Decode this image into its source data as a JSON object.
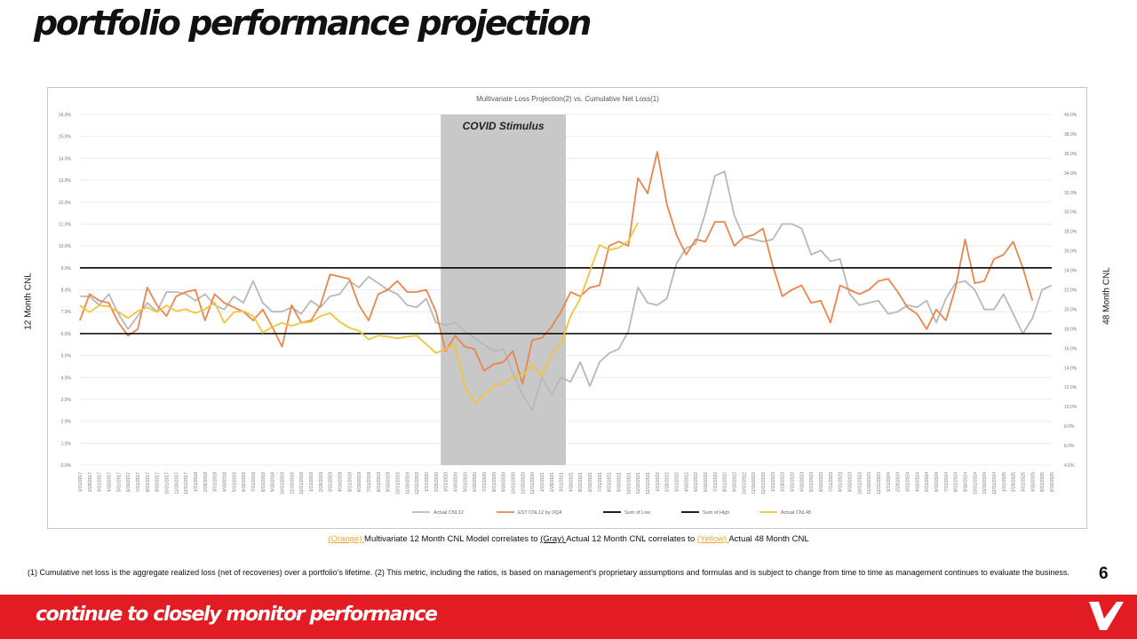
{
  "page": {
    "title": "portfolio performance projection",
    "left_axis_label": "12 Month CNL",
    "right_axis_label": "48 Month CNL",
    "page_number": "6",
    "footer_tagline": "continue to closely monitor performance",
    "footnote": "(1) Cumulative net loss is the aggregate realized loss (net of recoveries) over a portfolio's lifetime. (2) This metric, including the ratios, is based on management's proprietary assumptions and formulas and is subject to change from time to time as management continues to evaluate the business.",
    "logo_name": "V-logo"
  },
  "legend_note": {
    "orange": "(Orange) ",
    "part1": "Multivariate 12 Month CNL Model correlates to ",
    "gray": "(Gray) ",
    "part2": "Actual 12 Month CNL correlates to ",
    "yellow": "(Yellow) ",
    "part3": "Actual 48 Month CNL"
  },
  "colors": {
    "accent": "#e31b23",
    "gray_series": "#b8b8b8",
    "orange_series": "#e8864c",
    "yellow_series": "#f2c43d",
    "bounds": "#000000",
    "covid_band": "#c8c8c8"
  },
  "chart_data": {
    "type": "line",
    "title": "Multivariate Loss Projection(2) vs. Cumulative Net Loss(1)",
    "annotation": "COVID Stimulus",
    "covid_period": [
      "3/31/2020",
      "3/31/2021"
    ],
    "ylim_left": [
      0,
      16
    ],
    "ylim_right": [
      4,
      40
    ],
    "y_ticks_left": [
      "0.0%",
      "1.0%",
      "2.0%",
      "3.0%",
      "4.0%",
      "5.0%",
      "6.0%",
      "7.0%",
      "8.0%",
      "9.0%",
      "10.0%",
      "11.0%",
      "12.0%",
      "13.0%",
      "14.0%",
      "15.0%",
      "16.0%"
    ],
    "y_ticks_right": [
      "4.0%",
      "6.0%",
      "8.0%",
      "10.0%",
      "12.0%",
      "14.0%",
      "16.0%",
      "18.0%",
      "20.0%",
      "22.0%",
      "24.0%",
      "26.0%",
      "28.0%",
      "30.0%",
      "32.0%",
      "34.0%",
      "36.0%",
      "38.0%",
      "40.0%"
    ],
    "x_start": "1/31/2017",
    "x_end": "6/30/2025",
    "x_tick_step": 1,
    "x_labels": [
      "1/31/2017",
      "2/28/2017",
      "3/31/2017",
      "4/30/2017",
      "5/31/2017",
      "6/30/2017",
      "7/31/2017",
      "8/31/2017",
      "9/30/2017",
      "10/31/2017",
      "11/30/2017",
      "12/31/2017",
      "1/31/2018",
      "2/28/2018",
      "3/31/2018",
      "4/30/2018",
      "5/31/2018",
      "6/30/2018",
      "7/31/2018",
      "8/31/2018",
      "9/30/2018",
      "10/31/2018",
      "11/30/2018",
      "12/31/2018",
      "1/31/2019",
      "2/28/2019",
      "3/31/2019",
      "4/30/2019",
      "5/31/2019",
      "6/30/2019",
      "7/31/2019",
      "8/31/2019",
      "9/30/2019",
      "10/31/2019",
      "11/30/2019",
      "12/31/2019",
      "1/31/2020",
      "2/29/2020",
      "3/31/2020",
      "4/30/2020",
      "5/31/2020",
      "6/30/2020",
      "7/31/2020",
      "8/31/2020",
      "9/30/2020",
      "10/31/2020",
      "11/30/2020",
      "12/31/2020",
      "1/31/2021",
      "2/28/2021",
      "3/31/2021",
      "4/30/2021",
      "5/31/2021",
      "6/30/2021",
      "7/31/2021",
      "8/31/2021",
      "9/30/2021",
      "10/31/2021",
      "11/30/2021",
      "12/31/2021",
      "1/31/2022",
      "2/28/2022",
      "3/31/2022",
      "4/30/2022",
      "5/31/2022",
      "6/30/2022",
      "7/31/2022",
      "8/31/2022",
      "9/30/2022",
      "10/31/2022",
      "11/30/2022",
      "12/31/2022",
      "1/31/2023",
      "2/28/2023",
      "3/31/2023",
      "4/30/2023",
      "5/31/2023",
      "6/30/2023",
      "7/31/2023",
      "8/31/2023",
      "9/30/2023",
      "10/31/2023",
      "11/30/2023",
      "12/31/2023",
      "1/31/2024",
      "2/29/2024",
      "3/31/2024",
      "4/30/2024",
      "5/31/2024",
      "6/30/2024",
      "7/31/2024",
      "8/31/2024",
      "9/30/2024",
      "10/31/2024",
      "11/30/2024",
      "12/31/2024",
      "1/31/2025",
      "2/28/2025",
      "3/31/2025",
      "4/30/2025",
      "5/31/2025",
      "6/30/2025"
    ],
    "series": [
      {
        "name": "Actual CNL12",
        "axis": "left",
        "color": "#b8b8b8",
        "values": [
          7.7,
          7.7,
          7.3,
          7.8,
          6.9,
          6.2,
          6.8,
          7.4,
          7.0,
          7.9,
          7.9,
          7.8,
          7.5,
          7.8,
          7.3,
          7.1,
          7.7,
          7.4,
          8.4,
          7.4,
          7.0,
          7.0,
          7.2,
          6.9,
          7.5,
          7.2,
          7.7,
          7.8,
          8.4,
          8.1,
          8.6,
          8.3,
          8.0,
          7.8,
          7.3,
          7.2,
          7.6,
          6.5,
          6.4,
          6.5,
          6.1,
          5.8,
          5.5,
          5.2,
          5.3,
          4.2,
          3.2,
          2.5,
          4.0,
          3.2,
          4.0,
          3.8,
          4.7,
          3.6,
          4.7,
          5.1,
          5.3,
          6.1,
          8.1,
          7.4,
          7.3,
          7.6,
          9.2,
          9.9,
          10.1,
          11.5,
          13.2,
          13.4,
          11.4,
          10.4,
          10.3,
          10.2,
          10.3,
          11.0,
          11.0,
          10.8,
          9.6,
          9.8,
          9.3,
          9.4,
          7.8,
          7.3,
          7.4,
          7.5,
          6.9,
          7.0,
          7.3,
          7.2,
          7.5,
          6.5,
          7.6,
          8.3,
          8.4,
          8.0,
          7.1,
          7.1,
          7.8,
          6.9,
          6.0,
          6.7,
          8.0,
          8.2,
          null,
          null,
          null,
          null,
          null,
          null
        ]
      },
      {
        "name": "EST CNL12 by DQ4",
        "axis": "left",
        "color": "#e8864c",
        "values": [
          6.6,
          7.8,
          7.5,
          7.4,
          6.5,
          5.9,
          6.2,
          8.1,
          7.3,
          6.8,
          7.7,
          7.9,
          8.0,
          6.6,
          7.8,
          7.4,
          7.2,
          7.0,
          6.6,
          7.1,
          6.3,
          5.4,
          7.3,
          6.5,
          6.6,
          7.3,
          8.7,
          8.6,
          8.5,
          7.3,
          6.6,
          7.8,
          8.0,
          8.4,
          7.9,
          7.9,
          8.0,
          7.0,
          5.2,
          5.9,
          5.4,
          5.3,
          4.3,
          4.6,
          4.7,
          5.2,
          3.7,
          5.7,
          5.8,
          6.3,
          7.0,
          7.9,
          7.7,
          8.1,
          8.2,
          10.0,
          10.2,
          10.0,
          13.1,
          12.4,
          14.3,
          11.9,
          10.5,
          9.6,
          10.3,
          10.2,
          11.1,
          11.1,
          10.0,
          10.4,
          10.5,
          10.8,
          9.1,
          7.7,
          8.0,
          8.2,
          7.4,
          7.5,
          6.5,
          8.2,
          8.0,
          7.8,
          8.0,
          8.4,
          8.5,
          7.9,
          7.2,
          6.9,
          6.2,
          7.1,
          6.6,
          8.1,
          10.3,
          8.3,
          8.4,
          9.4,
          9.6,
          10.2,
          9.0,
          7.5
        ]
      },
      {
        "name": "Sum of Low",
        "axis": "left",
        "color": "#000000",
        "constant": 6.0
      },
      {
        "name": "Sum of High",
        "axis": "left",
        "color": "#000000",
        "constant": 9.0
      },
      {
        "name": "Actual CNL48",
        "axis": "right",
        "color": "#f2c43d",
        "values": [
          20.4,
          19.7,
          20.4,
          20.3,
          19.7,
          19.1,
          19.8,
          20.2,
          19.7,
          20.4,
          19.8,
          20.0,
          19.6,
          20.0,
          20.7,
          18.6,
          19.7,
          19.8,
          19.3,
          17.6,
          18.2,
          18.6,
          18.3,
          18.6,
          18.7,
          19.3,
          19.6,
          18.7,
          18.1,
          17.8,
          16.9,
          17.3,
          17.2,
          17.0,
          17.2,
          17.3,
          16.4,
          15.5,
          15.9,
          16.4,
          12.1,
          10.4,
          11.2,
          12.1,
          12.4,
          13.0,
          13.2,
          14.3,
          13.2,
          15.4,
          16.5,
          19.3,
          21.1,
          23.9,
          26.6,
          26.1,
          26.3,
          27.0,
          28.9,
          null,
          null,
          null,
          null,
          null,
          null,
          null,
          null,
          null,
          null,
          null,
          null,
          null,
          null,
          null,
          null,
          null,
          null,
          null,
          null,
          null,
          null,
          null,
          null,
          null,
          null,
          null,
          null,
          null,
          null,
          null,
          null,
          null,
          null,
          null,
          null,
          null,
          null,
          null,
          null,
          null
        ]
      }
    ],
    "legend": [
      "Actual CNL12",
      "EST CNL12 by DQ4",
      "Sum of Low",
      "Sum of High",
      "Actual CNL48"
    ],
    "legend_position": "bottom",
    "grid": true
  }
}
